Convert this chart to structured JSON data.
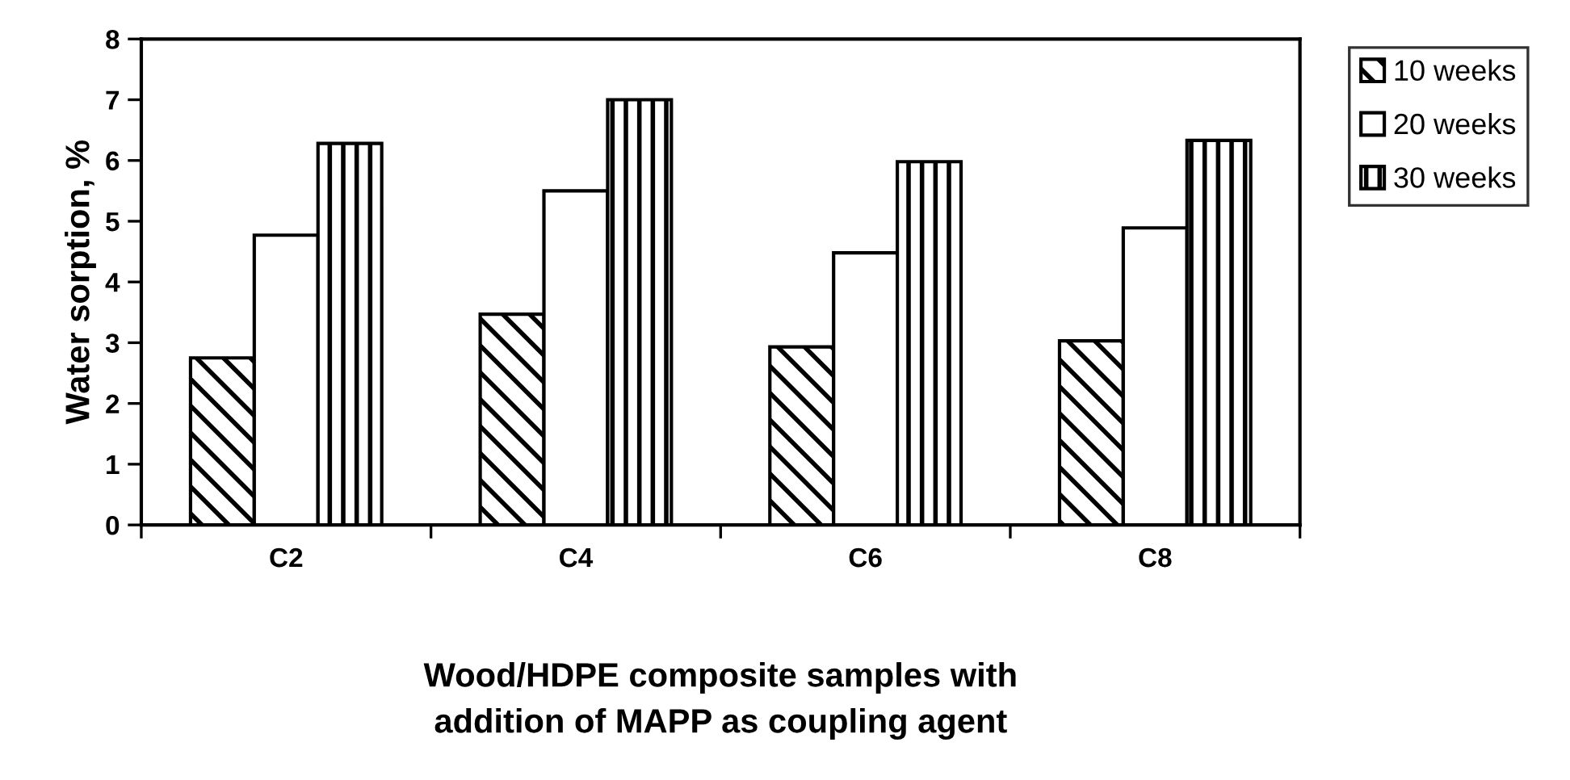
{
  "chart_data": {
    "type": "bar",
    "xlabel": "Wood/HDPE composite samples with\naddition of MAPP as coupling agent",
    "ylabel": "Water sorption, %",
    "categories": [
      "C2",
      "C4",
      "C6",
      "C8"
    ],
    "series": [
      {
        "name": "10 weeks",
        "color": "#000000",
        "values": [
          2.75,
          3.47,
          2.93,
          3.03
        ]
      },
      {
        "name": "20 weeks",
        "color": "#ffffff",
        "values": [
          4.77,
          5.5,
          4.48,
          4.89
        ]
      },
      {
        "name": "30 weeks",
        "color": "#000000",
        "values": [
          6.28,
          7.0,
          5.98,
          6.33
        ]
      }
    ],
    "ylim": [
      0,
      8
    ],
    "yticks": [
      0,
      1,
      2,
      3,
      4,
      5,
      6,
      7,
      8
    ],
    "grid": false,
    "legend": "right"
  }
}
